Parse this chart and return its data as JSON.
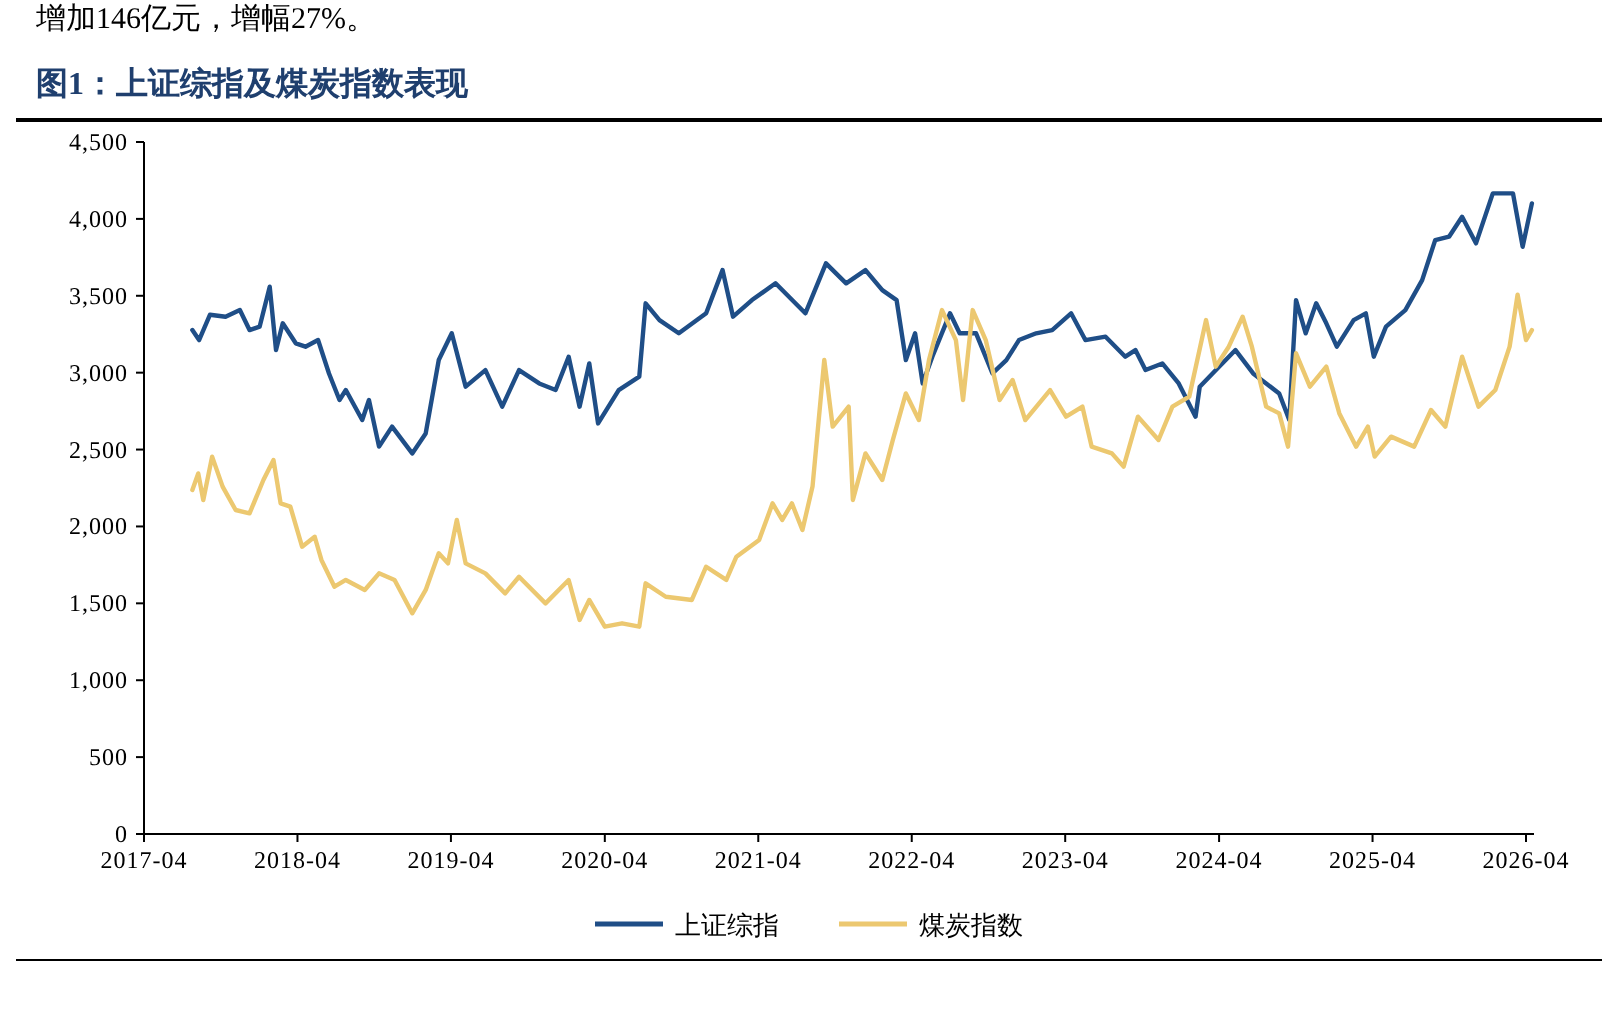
{
  "chart_data": {
    "type": "line",
    "title": "图1：上证综指及煤炭指数表现",
    "annotations": [
      "增加146亿元，增幅27%。"
    ],
    "xlim": [
      "2017-04",
      "2026-04-20"
    ],
    "xticks": [
      "2017-04",
      "2018-04",
      "2019-04",
      "2020-04",
      "2021-04",
      "2022-04",
      "2023-04",
      "2024-04",
      "2025-04",
      "2026-04"
    ],
    "ylim": [
      0,
      4500
    ],
    "yticks": [
      0,
      500,
      {
        "value": 1000,
        "label": "1,000"
      },
      {
        "value": 1500,
        "label": "1,500"
      },
      {
        "value": 2000,
        "label": "2,000"
      },
      {
        "value": 2500,
        "label": "2,500"
      },
      {
        "value": 3000,
        "label": "3,000"
      },
      {
        "value": 3500,
        "label": "3,500"
      },
      {
        "value": 4000,
        "label": "4,000"
      },
      {
        "value": 4500,
        "label": "4,500"
      }
    ],
    "grid": false,
    "legend": "bottom",
    "series": [
      {
        "name": "上证综指",
        "color": "#1f4e87",
        "x": [
          "2017-07-25",
          "2017-08-10",
          "2017-09-05",
          "2017-10-12",
          "2017-11-15",
          "2017-12-08",
          "2018-01-01",
          "2018-01-25",
          "2018-02-09",
          "2018-02-25",
          "2018-03-28",
          "2018-04-20",
          "2018-05-20",
          "2018-06-15",
          "2018-07-10",
          "2018-07-25",
          "2018-09-02",
          "2018-09-18",
          "2018-10-12",
          "2018-11-12",
          "2018-12-30",
          "2019-01-31",
          "2019-03-03",
          "2019-04-03",
          "2019-05-06",
          "2019-06-22",
          "2019-08-01",
          "2019-09-10",
          "2019-10-28",
          "2019-12-06",
          "2020-01-06",
          "2020-02-01",
          "2020-02-24",
          "2020-03-16",
          "2020-05-04",
          "2020-06-22",
          "2020-07-07",
          "2020-08-09",
          "2020-09-24",
          "2020-11-28",
          "2021-01-06",
          "2021-01-31",
          "2021-03-17",
          "2021-05-12",
          "2021-07-22",
          "2021-09-09",
          "2021-10-27",
          "2021-12-12",
          "2022-01-21",
          "2022-02-24",
          "2022-03-18",
          "2022-04-09",
          "2022-04-27",
          "2022-05-20",
          "2022-07-01",
          "2022-07-24",
          "2022-09-01",
          "2022-10-10",
          "2022-11-12",
          "2022-12-12",
          "2023-01-22",
          "2023-03-01",
          "2023-04-15",
          "2023-05-19",
          "2023-07-06",
          "2023-08-22",
          "2023-09-15",
          "2023-10-09",
          "2023-11-18",
          "2023-12-27",
          "2024-02-05",
          "2024-02-15",
          "2024-04-01",
          "2024-05-10",
          "2024-06-21",
          "2024-07-22",
          "2024-08-22",
          "2024-09-15",
          "2024-10-01",
          "2024-10-24",
          "2024-11-18",
          "2024-12-12",
          "2025-01-06",
          "2025-02-15",
          "2025-03-16",
          "2025-04-04",
          "2025-05-03",
          "2025-06-18",
          "2025-07-28",
          "2025-08-28",
          "2025-09-30",
          "2025-10-31",
          "2025-12-03",
          "2026-01-12",
          "2026-03-01",
          "2026-03-24",
          "2026-04-15"
        ],
        "values": [
          3277,
          3212,
          3377,
          3364,
          3407,
          3277,
          3299,
          3559,
          3147,
          3321,
          3191,
          3169,
          3212,
          2995,
          2822,
          2887,
          2692,
          2822,
          2519,
          2649,
          2475,
          2605,
          3082,
          3256,
          2909,
          3017,
          2779,
          3017,
          2930,
          2887,
          3104,
          2779,
          3060,
          2670,
          2887,
          2974,
          3451,
          3342,
          3256,
          3386,
          3667,
          3364,
          3472,
          3581,
          3386,
          3711,
          3581,
          3667,
          3537,
          3472,
          3082,
          3256,
          2930,
          3104,
          3386,
          3256,
          3256,
          2995,
          3082,
          3212,
          3256,
          3277,
          3386,
          3212,
          3234,
          3104,
          3147,
          3017,
          3060,
          2930,
          2714,
          2909,
          3039,
          3147,
          2995,
          2930,
          2865,
          2692,
          3472,
          3256,
          3451,
          3321,
          3169,
          3342,
          3386,
          3104,
          3299,
          3407,
          3602,
          3862,
          3884,
          4014,
          3841,
          4166,
          4166,
          3819,
          4101
        ]
      },
      {
        "name": "煤炭指数",
        "color": "#ecc870",
        "x": [
          "2017-07-25",
          "2017-08-08",
          "2017-08-20",
          "2017-09-10",
          "2017-10-05",
          "2017-11-05",
          "2017-12-08",
          "2018-01-10",
          "2018-02-03",
          "2018-02-20",
          "2018-03-15",
          "2018-04-12",
          "2018-05-12",
          "2018-05-28",
          "2018-06-28",
          "2018-07-25",
          "2018-09-08",
          "2018-10-12",
          "2018-11-18",
          "2018-12-30",
          "2019-01-31",
          "2019-03-03",
          "2019-03-25",
          "2019-04-15",
          "2019-05-06",
          "2019-06-22",
          "2019-08-08",
          "2019-09-10",
          "2019-11-12",
          "2020-01-06",
          "2020-02-01",
          "2020-02-24",
          "2020-04-01",
          "2020-05-12",
          "2020-06-22",
          "2020-07-07",
          "2020-08-24",
          "2020-10-25",
          "2020-11-28",
          "2021-01-15",
          "2021-02-08",
          "2021-04-03",
          "2021-05-05",
          "2021-05-28",
          "2021-06-20",
          "2021-07-15",
          "2021-08-08",
          "2021-09-05",
          "2021-09-25",
          "2021-11-02",
          "2021-11-12",
          "2021-12-12",
          "2022-01-21",
          "2022-02-15",
          "2022-03-18",
          "2022-04-18",
          "2022-05-12",
          "2022-06-12",
          "2022-07-15",
          "2022-08-01",
          "2022-08-24",
          "2022-09-24",
          "2022-10-27",
          "2022-11-27",
          "2022-12-27",
          "2023-02-24",
          "2023-04-03",
          "2023-05-12",
          "2023-06-03",
          "2023-07-21",
          "2023-08-18",
          "2023-09-21",
          "2023-11-09",
          "2023-12-12",
          "2024-01-21",
          "2024-03-01",
          "2024-03-24",
          "2024-04-24",
          "2024-05-27",
          "2024-06-18",
          "2024-07-22",
          "2024-08-22",
          "2024-09-12",
          "2024-10-01",
          "2024-11-03",
          "2024-12-12",
          "2025-01-12",
          "2025-02-21",
          "2025-03-21",
          "2025-04-06",
          "2025-05-15",
          "2025-07-09",
          "2025-08-18",
          "2025-09-21",
          "2025-10-31",
          "2025-12-09",
          "2026-01-18",
          "2026-02-21",
          "2026-03-12",
          "2026-04-01",
          "2026-04-15"
        ],
        "values": [
          2237,
          2345,
          2172,
          2454,
          2259,
          2107,
          2085,
          2302,
          2432,
          2150,
          2129,
          1868,
          1933,
          1782,
          1608,
          1652,
          1587,
          1695,
          1652,
          1435,
          1587,
          1825,
          1760,
          2042,
          1760,
          1695,
          1565,
          1673,
          1500,
          1652,
          1392,
          1522,
          1348,
          1370,
          1348,
          1630,
          1543,
          1522,
          1738,
          1652,
          1803,
          1912,
          2150,
          2042,
          2150,
          1977,
          2259,
          3082,
          2649,
          2779,
          2172,
          2475,
          2302,
          2562,
          2865,
          2692,
          3082,
          3407,
          3212,
          2822,
          3407,
          3212,
          2822,
          2952,
          2692,
          2887,
          2714,
          2779,
          2519,
          2475,
          2389,
          2714,
          2562,
          2779,
          2844,
          3342,
          3039,
          3169,
          3364,
          3169,
          2779,
          2735,
          2519,
          3126,
          2909,
          3039,
          2735,
          2519,
          2649,
          2454,
          2584,
          2519,
          2757,
          2649,
          3104,
          2779,
          2887,
          3169,
          3507,
          3212,
          3277
        ]
      }
    ]
  }
}
